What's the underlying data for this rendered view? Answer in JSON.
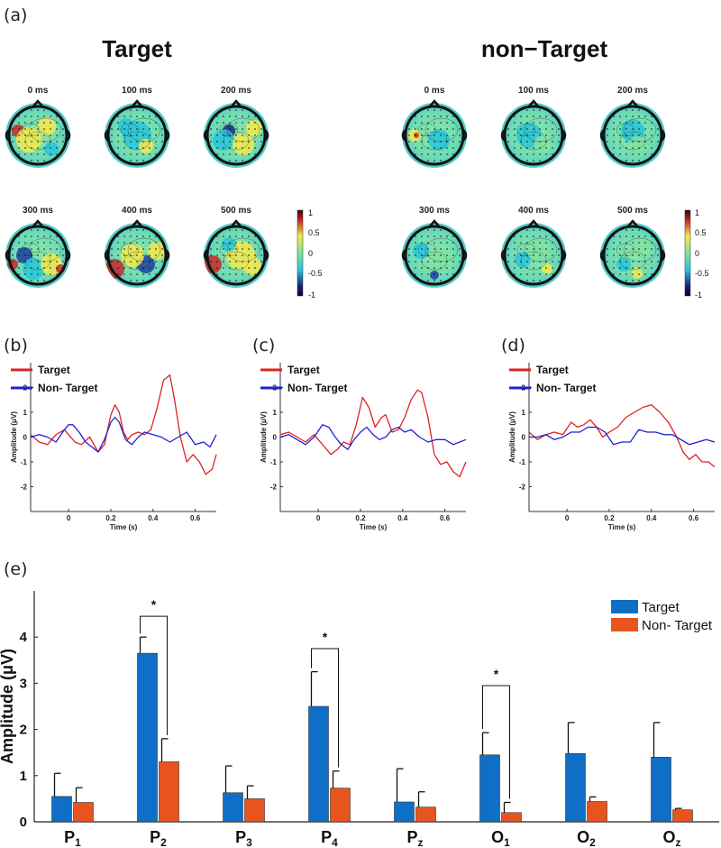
{
  "panel_labels": {
    "a": "(a)",
    "b": "(b)",
    "c": "(c)",
    "d": "(d)",
    "e": "(e)"
  },
  "topomaps": {
    "group_titles": [
      "Target",
      "non−Target"
    ],
    "time_labels": [
      "0 ms",
      "100 ms",
      "200 ms",
      "300 ms",
      "400 ms",
      "500 ms"
    ],
    "colorbar_ticks": [
      "1",
      "0.5",
      "0",
      "-0.5",
      "-1"
    ],
    "colors": {
      "neg": "#1a237e",
      "mid_low": "#26c6da",
      "mid": "#7fe3a0",
      "mid_high": "#f2e94e",
      "pos": "#c62828"
    }
  },
  "chart_data": [
    {
      "type": "line",
      "panel": "(b)",
      "xlabel": "Time (s)",
      "ylabel": "Amplitude (μV)",
      "xticks": [
        "0",
        "0.2",
        "0.4",
        "0.6"
      ],
      "yticks": [
        "2",
        "1",
        "0",
        "-1",
        "-2"
      ],
      "xlim": [
        -0.18,
        0.7
      ],
      "ylim": [
        -3,
        3
      ],
      "series": [
        {
          "name": "Target",
          "color": "#e02020",
          "x": [
            -0.18,
            -0.14,
            -0.1,
            -0.06,
            -0.02,
            0.0,
            0.03,
            0.06,
            0.1,
            0.14,
            0.17,
            0.2,
            0.22,
            0.24,
            0.26,
            0.28,
            0.3,
            0.33,
            0.36,
            0.39,
            0.42,
            0.45,
            0.48,
            0.5,
            0.53,
            0.56,
            0.59,
            0.62,
            0.65,
            0.68,
            0.7
          ],
          "y": [
            0.1,
            -0.2,
            -0.3,
            0.1,
            0.3,
            0.1,
            -0.2,
            -0.3,
            0.0,
            -0.6,
            -0.3,
            0.9,
            1.3,
            1.0,
            0.2,
            -0.1,
            0.1,
            0.2,
            0.1,
            0.3,
            1.2,
            2.3,
            2.5,
            1.6,
            0.0,
            -1.0,
            -0.7,
            -1.0,
            -1.5,
            -1.3,
            -0.7
          ]
        },
        {
          "name": "Non- Target",
          "color": "#2020d0",
          "x": [
            -0.18,
            -0.14,
            -0.1,
            -0.06,
            -0.02,
            0.0,
            0.02,
            0.05,
            0.08,
            0.11,
            0.14,
            0.17,
            0.2,
            0.22,
            0.24,
            0.27,
            0.3,
            0.33,
            0.36,
            0.4,
            0.44,
            0.48,
            0.52,
            0.56,
            0.6,
            0.64,
            0.67,
            0.7
          ],
          "y": [
            0.0,
            0.1,
            0.0,
            -0.2,
            0.3,
            0.5,
            0.5,
            0.2,
            -0.2,
            -0.4,
            -0.6,
            -0.1,
            0.6,
            0.8,
            0.6,
            -0.1,
            -0.3,
            0.0,
            0.2,
            0.1,
            0.0,
            -0.2,
            0.0,
            0.2,
            -0.3,
            -0.2,
            -0.4,
            0.1
          ]
        }
      ]
    },
    {
      "type": "line",
      "panel": "(c)",
      "xlabel": "Time (s)",
      "ylabel": "Amplitude (μV)",
      "xticks": [
        "0",
        "0.2",
        "0.4",
        "0.6"
      ],
      "yticks": [
        "2",
        "1",
        "0",
        "-1",
        "-2"
      ],
      "xlim": [
        -0.18,
        0.7
      ],
      "ylim": [
        -3,
        3
      ],
      "series": [
        {
          "name": "Target",
          "color": "#e02020",
          "x": [
            -0.18,
            -0.14,
            -0.1,
            -0.06,
            -0.02,
            0.0,
            0.03,
            0.06,
            0.09,
            0.12,
            0.15,
            0.18,
            0.21,
            0.24,
            0.27,
            0.3,
            0.32,
            0.35,
            0.38,
            0.41,
            0.44,
            0.47,
            0.49,
            0.52,
            0.55,
            0.58,
            0.61,
            0.64,
            0.67,
            0.7
          ],
          "y": [
            0.1,
            0.2,
            0.0,
            -0.2,
            0.1,
            -0.1,
            -0.4,
            -0.7,
            -0.5,
            -0.2,
            -0.3,
            0.5,
            1.6,
            1.2,
            0.4,
            0.8,
            0.9,
            0.2,
            0.3,
            0.8,
            1.5,
            1.9,
            1.8,
            0.8,
            -0.7,
            -1.1,
            -1.0,
            -1.4,
            -1.6,
            -1.0
          ]
        },
        {
          "name": "Non- Target",
          "color": "#2020d0",
          "x": [
            -0.18,
            -0.14,
            -0.1,
            -0.06,
            -0.02,
            0.02,
            0.05,
            0.08,
            0.11,
            0.14,
            0.17,
            0.2,
            0.23,
            0.26,
            0.29,
            0.32,
            0.35,
            0.38,
            0.41,
            0.44,
            0.48,
            0.52,
            0.56,
            0.6,
            0.64,
            0.67,
            0.7
          ],
          "y": [
            0.0,
            0.1,
            -0.1,
            -0.3,
            0.0,
            0.5,
            0.4,
            0.0,
            -0.3,
            -0.5,
            -0.1,
            0.2,
            0.4,
            0.1,
            -0.1,
            0.0,
            0.3,
            0.4,
            0.2,
            0.3,
            0.0,
            -0.2,
            -0.1,
            -0.1,
            -0.3,
            -0.2,
            -0.1
          ]
        }
      ]
    },
    {
      "type": "line",
      "panel": "(d)",
      "xlabel": "Time (s)",
      "ylabel": "Amplitude (μV)",
      "xticks": [
        "0",
        "0.2",
        "0.4",
        "0.6"
      ],
      "yticks": [
        "2",
        "1",
        "0",
        "-1",
        "-2"
      ],
      "xlim": [
        -0.18,
        0.7
      ],
      "ylim": [
        -3,
        3
      ],
      "series": [
        {
          "name": "Target",
          "color": "#e02020",
          "x": [
            -0.18,
            -0.14,
            -0.1,
            -0.06,
            -0.02,
            0.02,
            0.05,
            0.08,
            0.11,
            0.14,
            0.17,
            0.2,
            0.24,
            0.28,
            0.32,
            0.36,
            0.4,
            0.44,
            0.48,
            0.52,
            0.55,
            0.58,
            0.61,
            0.64,
            0.67,
            0.7
          ],
          "y": [
            0.2,
            -0.1,
            0.1,
            0.2,
            0.1,
            0.6,
            0.4,
            0.5,
            0.7,
            0.4,
            0.0,
            0.2,
            0.4,
            0.8,
            1.0,
            1.2,
            1.3,
            1.0,
            0.6,
            0.0,
            -0.6,
            -0.9,
            -0.7,
            -1.0,
            -1.0,
            -1.2
          ]
        },
        {
          "name": "Non- Target",
          "color": "#2020d0",
          "x": [
            -0.18,
            -0.14,
            -0.1,
            -0.06,
            -0.02,
            0.02,
            0.06,
            0.1,
            0.14,
            0.18,
            0.22,
            0.26,
            0.3,
            0.34,
            0.38,
            0.42,
            0.46,
            0.5,
            0.54,
            0.58,
            0.62,
            0.66,
            0.7
          ],
          "y": [
            0.0,
            0.0,
            0.1,
            -0.1,
            0.0,
            0.2,
            0.2,
            0.4,
            0.4,
            0.2,
            -0.3,
            -0.2,
            -0.2,
            0.3,
            0.2,
            0.2,
            0.1,
            0.1,
            -0.1,
            -0.3,
            -0.2,
            -0.1,
            -0.2
          ]
        }
      ]
    },
    {
      "type": "bar",
      "panel": "(e)",
      "ylabel": "Amplitude (μV)",
      "ylim": [
        0,
        5
      ],
      "yticks": [
        "0",
        "1",
        "2",
        "3",
        "4"
      ],
      "categories": [
        {
          "base": "P",
          "sub": "1"
        },
        {
          "base": "P",
          "sub": "2"
        },
        {
          "base": "P",
          "sub": "3"
        },
        {
          "base": "P",
          "sub": "4"
        },
        {
          "base": "P",
          "sub": "z"
        },
        {
          "base": "O",
          "sub": "1"
        },
        {
          "base": "O",
          "sub": "2"
        },
        {
          "base": "O",
          "sub": "z"
        }
      ],
      "series": [
        {
          "name": "Target",
          "color": "#0f6fc6",
          "values": [
            0.55,
            3.65,
            0.63,
            2.5,
            0.43,
            1.45,
            1.48,
            1.4
          ],
          "errors": [
            0.5,
            0.35,
            0.58,
            0.75,
            0.72,
            0.48,
            0.67,
            0.75
          ]
        },
        {
          "name": "Non- Target",
          "color": "#e8541e",
          "values": [
            0.42,
            1.3,
            0.5,
            0.73,
            0.32,
            0.2,
            0.44,
            0.26
          ],
          "errors": [
            0.32,
            0.5,
            0.28,
            0.37,
            0.33,
            0.22,
            0.1,
            0.03
          ]
        }
      ],
      "significance": [
        {
          "category_index": 1,
          "label": "*",
          "level": 4.45
        },
        {
          "category_index": 3,
          "label": "*",
          "level": 3.75
        },
        {
          "category_index": 5,
          "label": "*",
          "level": 2.95
        }
      ]
    }
  ]
}
